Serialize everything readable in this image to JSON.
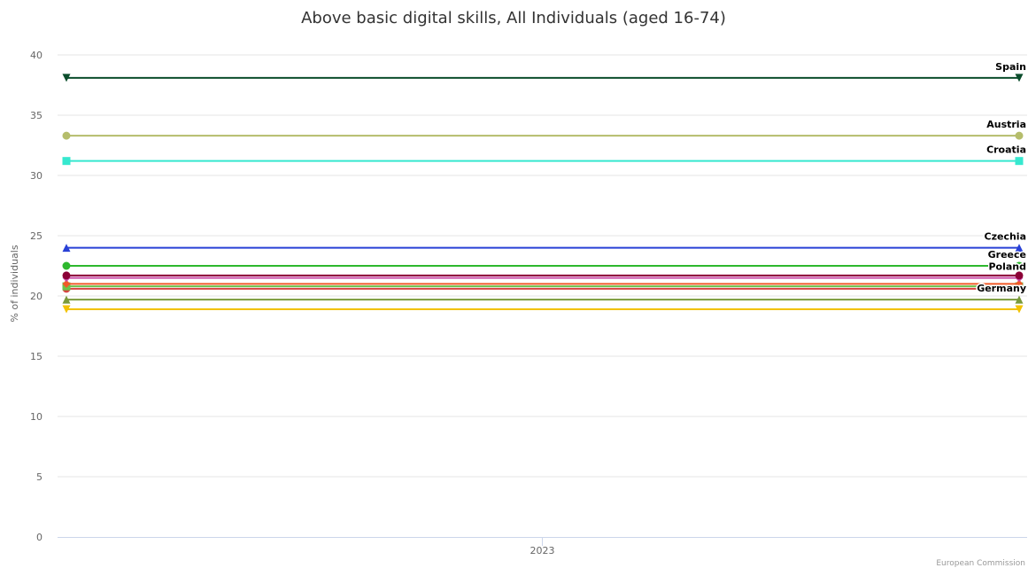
{
  "chart_data": {
    "type": "line",
    "title": "Above basic digital skills, All Individuals (aged 16-74)",
    "xlabel": "",
    "ylabel": "% of individuals",
    "categories": [
      "2023"
    ],
    "yticks": [
      0,
      5,
      10,
      15,
      20,
      25,
      30,
      35,
      40
    ],
    "ylim": [
      0,
      40
    ],
    "grid": true,
    "legend": "none",
    "credit": "European Commission",
    "series": [
      {
        "name": "Spain",
        "value": 38.1,
        "color": "#0b4d2c",
        "marker": "triangle-down",
        "labeled": true
      },
      {
        "name": "Austria",
        "value": 33.3,
        "color": "#b5bd6b",
        "marker": "circle",
        "labeled": true
      },
      {
        "name": "Croatia",
        "value": 31.2,
        "color": "#36e8cf",
        "marker": "square",
        "labeled": true
      },
      {
        "name": "Czechia",
        "value": 24.0,
        "color": "#2941d6",
        "marker": "triangle",
        "labeled": true
      },
      {
        "name": "Greece",
        "value": 22.5,
        "color": "#2eb82e",
        "marker": "circle",
        "labeled": true
      },
      {
        "name": "",
        "value": 21.7,
        "color": "#8b0036",
        "marker": "circle",
        "labeled": false
      },
      {
        "name": "Poland",
        "value": 21.5,
        "color": "#c94aa8",
        "marker": "diamond",
        "labeled": true
      },
      {
        "name": "",
        "value": 21.0,
        "color": "#f05a28",
        "marker": "diamond",
        "labeled": false
      },
      {
        "name": "",
        "value": 20.8,
        "color": "#6cc24a",
        "marker": "square",
        "labeled": false
      },
      {
        "name": "",
        "value": 20.6,
        "color": "#d64541",
        "marker": "circle",
        "labeled": false
      },
      {
        "name": "Germany",
        "value": 19.7,
        "color": "#7a9a3a",
        "marker": "triangle",
        "labeled": true
      },
      {
        "name": "",
        "value": 18.9,
        "color": "#f2c200",
        "marker": "triangle-down",
        "labeled": false
      }
    ]
  }
}
